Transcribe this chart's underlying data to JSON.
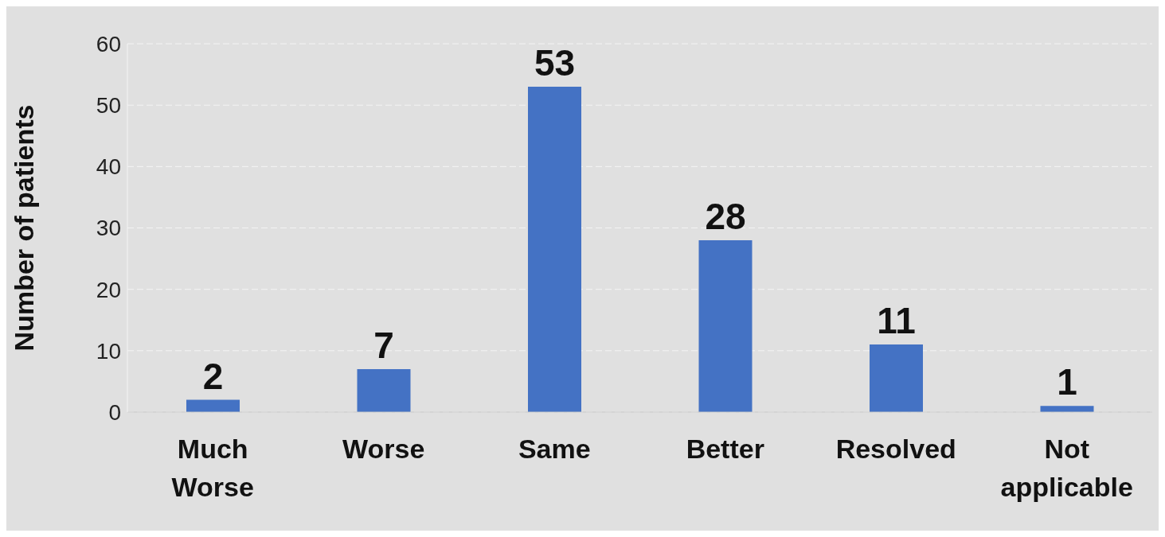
{
  "chart_data": {
    "type": "bar",
    "ylabel": "Number of patients",
    "categories": [
      "Much Worse",
      "Worse",
      "Same",
      "Better",
      "Resolved",
      "Not applicable"
    ],
    "values": [
      2,
      7,
      53,
      28,
      11,
      1
    ],
    "color": "#4472c4",
    "ylim": [
      0,
      60
    ],
    "yticks": [
      0,
      10,
      20,
      30,
      40,
      50,
      60
    ],
    "grid": "y",
    "data_labels": true
  }
}
